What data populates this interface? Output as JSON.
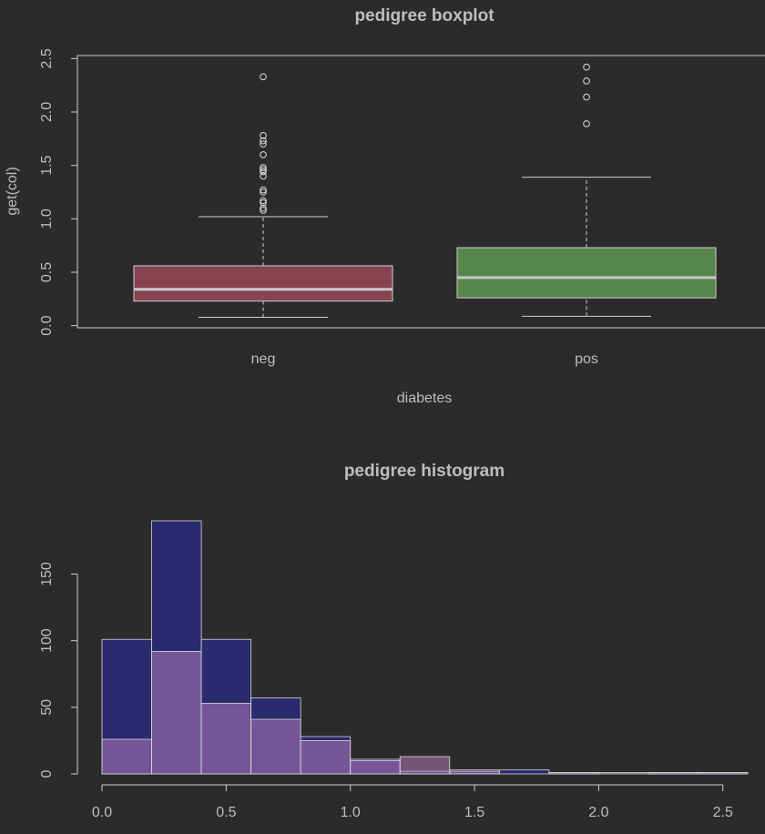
{
  "chart_data": [
    {
      "type": "boxplot",
      "title": "pedigree boxplot",
      "x_label": "diabetes",
      "y_label": "get(col)",
      "categories": [
        "neg",
        "pos"
      ],
      "boxes": [
        {
          "low": 0.078,
          "q1": 0.23,
          "median": 0.34,
          "q3": 0.56,
          "high": 1.02,
          "outliers": [
            2.33,
            1.78,
            1.73,
            1.7,
            1.6,
            1.48,
            1.46,
            1.44,
            1.4,
            1.27,
            1.25,
            1.17,
            1.15,
            1.1,
            1.08
          ]
        },
        {
          "low": 0.088,
          "q1": 0.26,
          "median": 0.45,
          "q3": 0.73,
          "high": 1.39,
          "outliers": [
            2.42,
            2.29,
            2.14,
            1.89
          ]
        }
      ],
      "colors": [
        "#87434f",
        "#56864c"
      ],
      "ylim": [
        -0.02,
        2.52
      ],
      "yticks": [
        {
          "value": 0,
          "label": "0.0"
        },
        0.5,
        {
          "value": 1,
          "label": "1.0"
        },
        1.5,
        {
          "value": 2,
          "label": "2.0"
        },
        2.5
      ]
    },
    {
      "type": "histogram",
      "title": "pedigree histogram",
      "bins": [
        0,
        0.2,
        0.4,
        0.6,
        0.8,
        1.0,
        1.2,
        1.4,
        1.6,
        1.8,
        2.0,
        2.2,
        2.4,
        2.6
      ],
      "series": [
        {
          "color": "#2a2a6e",
          "values": [
            101,
            190,
            101,
            57,
            28,
            11,
            2,
            3,
            3,
            1,
            0,
            1,
            1
          ]
        },
        {
          "color": "#c080c0",
          "opacity": 0.5,
          "values": [
            26,
            92,
            53,
            41,
            25,
            10,
            13,
            2,
            0,
            1,
            1,
            1,
            1
          ]
        }
      ],
      "xlim": [
        0,
        2.6
      ],
      "ylim": [
        0,
        190
      ],
      "xticks": [
        {
          "value": 0,
          "label": "0.0"
        },
        0.5,
        {
          "value": 1,
          "label": "1.0"
        },
        1.5,
        {
          "value": 2,
          "label": "2.0"
        },
        2.5
      ],
      "yticks": [
        0,
        50,
        100,
        150
      ]
    }
  ]
}
